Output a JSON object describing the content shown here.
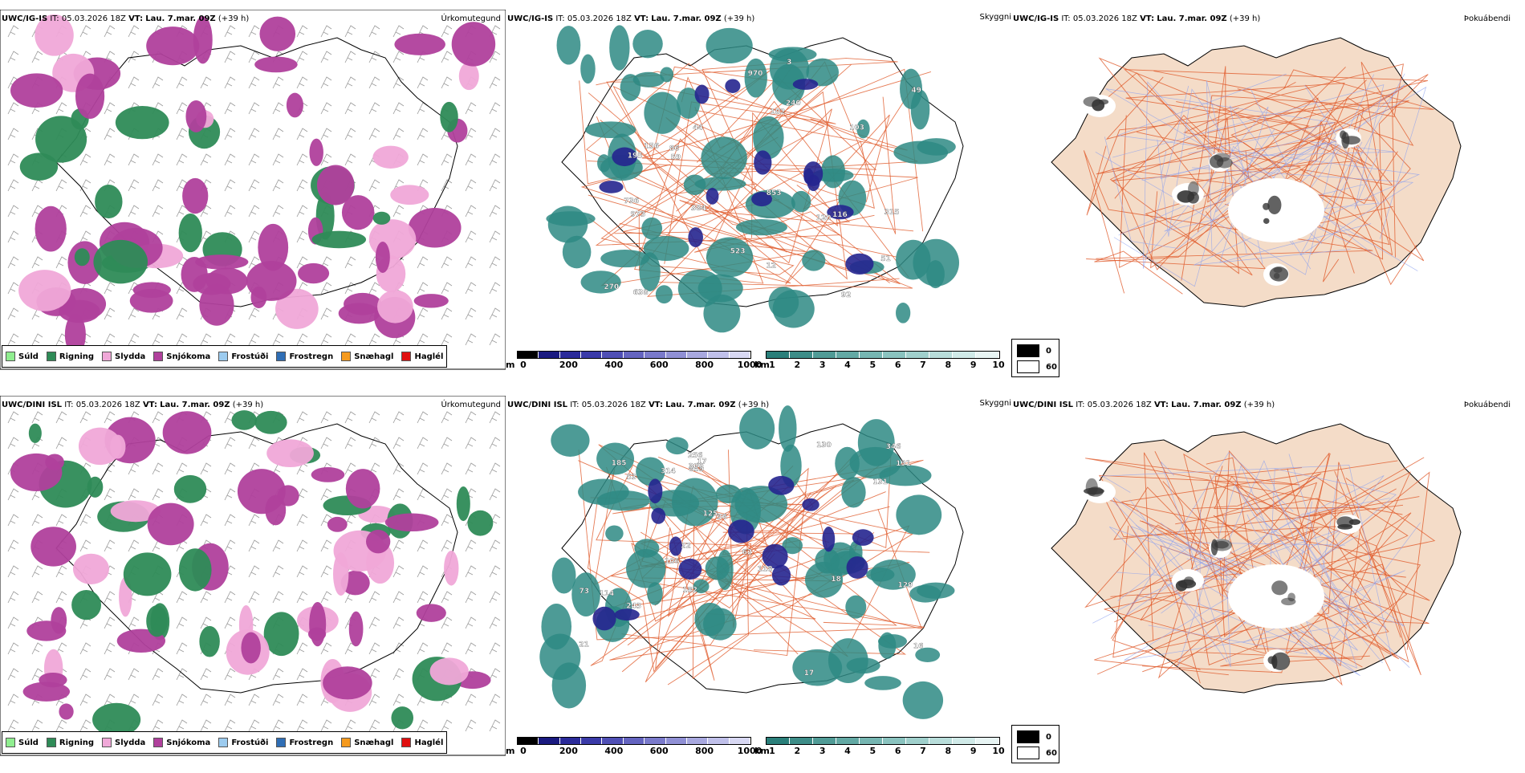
{
  "rows": [
    {
      "precip": {
        "model": "UWC/IG-IS",
        "init_label": "IT:",
        "init": "05.03.2026 18Z",
        "valid_label": "VT:",
        "valid": "Lau. 7.mar. 09Z",
        "lead": "(+39 h)",
        "title": "Úrkomutegund"
      },
      "vis": {
        "model": "UWC/IG-IS",
        "init_label": "IT:",
        "init": "05.03.2026 18Z",
        "valid_label": "VT:",
        "valid": "Lau. 7.mar. 09Z",
        "lead": "(+39 h)",
        "title": "Skyggni",
        "labels": [
          "102",
          "120",
          "384",
          "736",
          "156",
          "523",
          "103",
          "51",
          "12",
          "315",
          "195",
          "49",
          "92",
          "59",
          "270",
          "116",
          "240",
          "973",
          "638",
          "970",
          "853",
          "44",
          "86",
          "3"
        ]
      },
      "fog": {
        "model": "UWC/IG-IS",
        "init_label": "IT:",
        "init": "05.03.2026 18Z",
        "valid_label": "VT:",
        "valid": "Lau. 7.mar. 09Z",
        "lead": "(+39 h)",
        "title": "Þokuábendi"
      }
    },
    {
      "precip": {
        "model": "UWC/DINI ISL",
        "init_label": "IT:",
        "init": "05.03.2026 18Z",
        "valid_label": "VT:",
        "valid": "Lau. 7.mar. 09Z",
        "lead": "(+39 h)",
        "title": "Úrkomutegund"
      },
      "vis": {
        "model": "UWC/DINI ISL",
        "init_label": "IT:",
        "init": "05.03.2026 18Z",
        "valid_label": "VT:",
        "valid": "Lau. 7.mar. 09Z",
        "lead": "(+39 h)",
        "title": "Skyggni",
        "labels": [
          "62",
          "73",
          "185",
          "22",
          "17",
          "131",
          "21",
          "16",
          "18",
          "346",
          "182",
          "114",
          "125",
          "129",
          "243",
          "130",
          "314",
          "256",
          "106",
          "118",
          "131",
          "17",
          "53",
          "859",
          "309",
          "36"
        ]
      },
      "fog": {
        "model": "UWC/DINI ISL",
        "init_label": "IT:",
        "init": "05.03.2026 18Z",
        "valid_label": "VT:",
        "valid": "Lau. 7.mar. 09Z",
        "lead": "(+39 h)",
        "title": "Þokuábendi"
      }
    }
  ],
  "precip_legend": [
    {
      "label": "Súld",
      "color": "#90ee90"
    },
    {
      "label": "Rigning",
      "color": "#2e8b57"
    },
    {
      "label": "Slydda",
      "color": "#f0a8d8"
    },
    {
      "label": "Snjókoma",
      "color": "#b0409c"
    },
    {
      "label": "Frostúði",
      "color": "#9ccbef"
    },
    {
      "label": "Frostregn",
      "color": "#2f6eb5"
    },
    {
      "label": "Snæhagl",
      "color": "#f59a1e"
    },
    {
      "label": "Haglél",
      "color": "#e01010"
    }
  ],
  "cloud_base_bar": {
    "unit": "m",
    "ticks": [
      "0",
      "200",
      "400",
      "600",
      "800",
      "1000"
    ],
    "colors": [
      "#000000",
      "#1a1a80",
      "#2b2b9a",
      "#3a3aa8",
      "#4f4fb5",
      "#6464c0",
      "#7a7acb",
      "#9090d5",
      "#a8a8df",
      "#c0c0ea",
      "#d8d8f3"
    ]
  },
  "visibility_bar": {
    "unit": "km",
    "ticks": [
      "1",
      "2",
      "3",
      "4",
      "5",
      "6",
      "7",
      "8",
      "9",
      "10"
    ],
    "colors": [
      "#2a7f7a",
      "#3d8d88",
      "#509b96",
      "#63a9a4",
      "#76b6b2",
      "#8ac3bf",
      "#a0d0cc",
      "#b8ddda",
      "#d0eae8",
      "#e8f5f4"
    ]
  },
  "fog_legend": [
    {
      "label": "0",
      "color": "#000000"
    },
    {
      "label": "60",
      "color": "#ffffff"
    }
  ],
  "colors": {
    "snow": "#b0409c",
    "rain": "#2e8b57",
    "sleet": "#f0a8d8",
    "vis_teal": "#2e8a84",
    "cloud_blue": "#25258f",
    "land": "#f4dcc8",
    "roads": "#e05a2a",
    "rivers": "#8aa0f0"
  }
}
